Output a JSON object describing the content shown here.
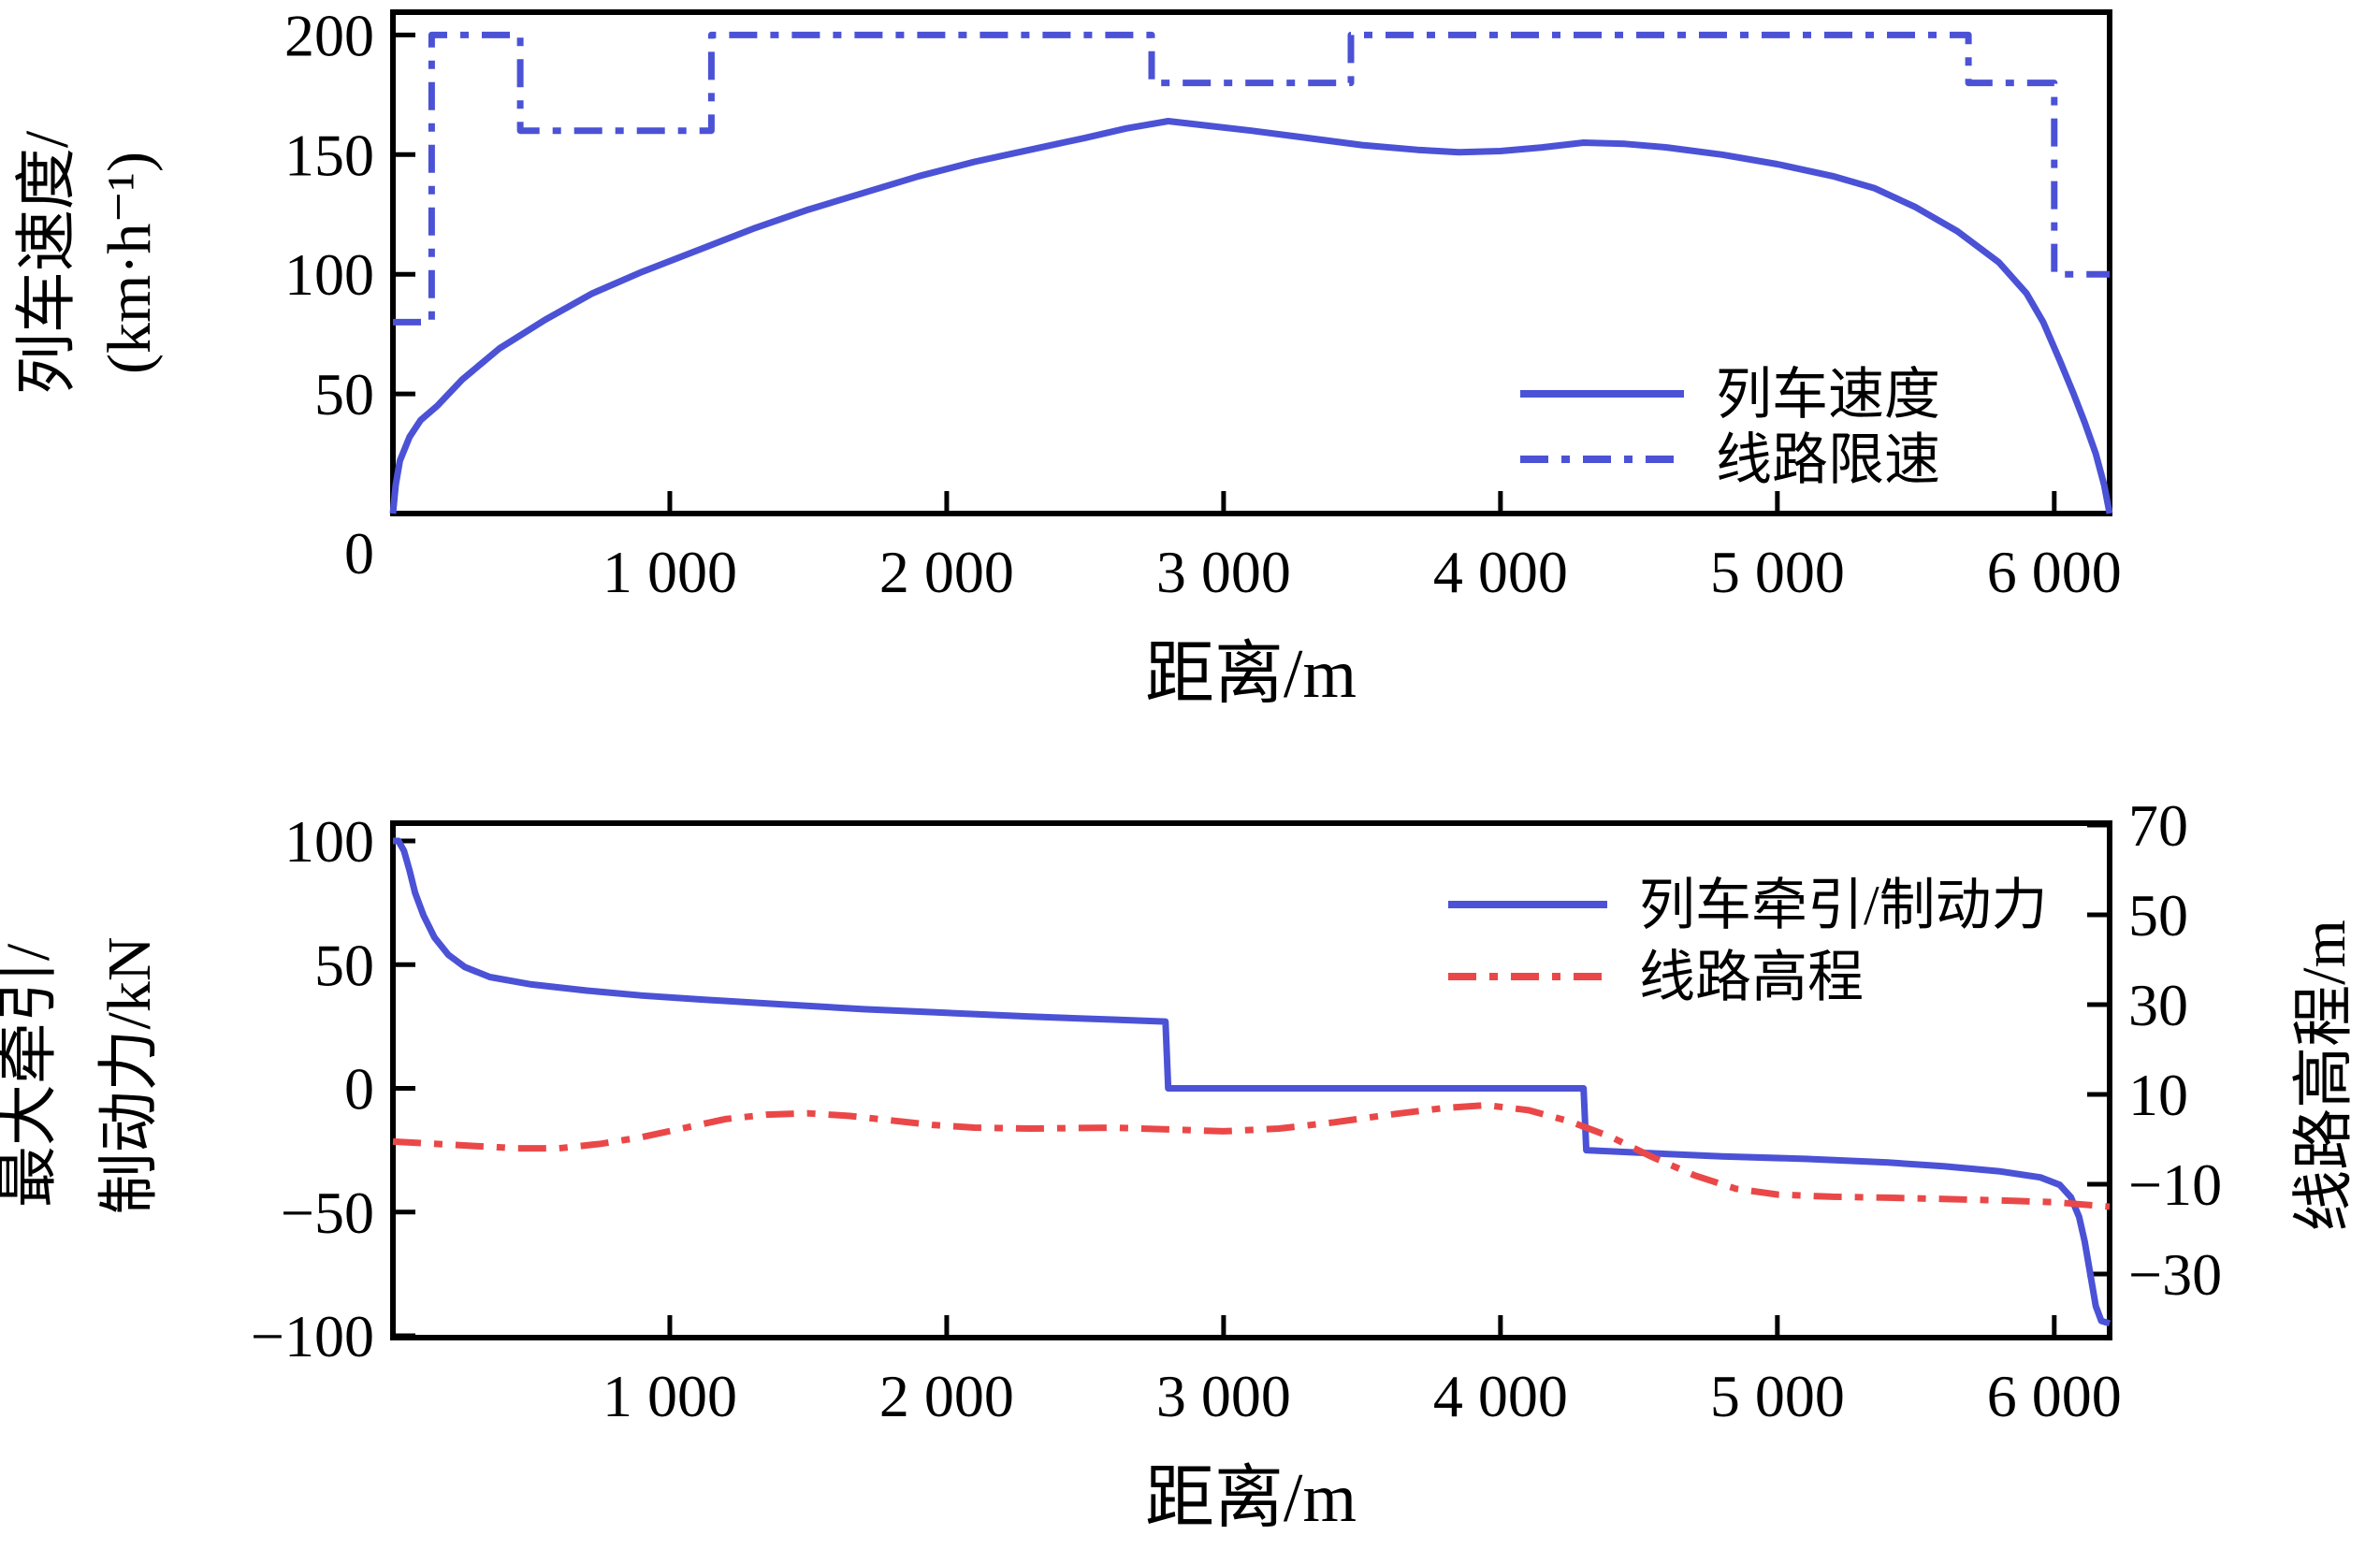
{
  "figure": {
    "background": "#ffffff",
    "colors": {
      "curve_blue": "#4b52d6",
      "elevation_red": "#ea4848",
      "axis_black": "#000000"
    }
  },
  "chart_data": [
    {
      "id": "speed_chart",
      "type": "line",
      "title": "",
      "xlabel": "距离/m",
      "ylabel_lines": [
        "列车速度/",
        "(km·h⁻¹)"
      ],
      "xlim": [
        0,
        6200
      ],
      "ylim": [
        0,
        209
      ],
      "grid": false,
      "legend_position": "center-right",
      "origin_label": "0",
      "x_ticks": [
        {
          "v": 1000,
          "label": "1 000"
        },
        {
          "v": 2000,
          "label": "2 000"
        },
        {
          "v": 3000,
          "label": "3 000"
        },
        {
          "v": 4000,
          "label": "4 000"
        },
        {
          "v": 5000,
          "label": "5 000"
        },
        {
          "v": 6000,
          "label": "6 000"
        }
      ],
      "y_ticks_left": [
        {
          "v": 200,
          "label": "200"
        },
        {
          "v": 150,
          "label": "150"
        },
        {
          "v": 100,
          "label": "100"
        },
        {
          "v": 50,
          "label": "50"
        }
      ],
      "legend": [
        {
          "label": "列车速度",
          "color": "curve_blue",
          "style": "solid"
        },
        {
          "label": "线路限速",
          "color": "curve_blue",
          "style": "dashdot"
        }
      ],
      "series": [
        {
          "name": "列车速度",
          "axis": "left",
          "style": "solid",
          "color": "curve_blue",
          "points": [
            [
              0,
              0
            ],
            [
              10,
              12
            ],
            [
              25,
              22
            ],
            [
              60,
              32
            ],
            [
              100,
              39
            ],
            [
              160,
              45
            ],
            [
              250,
              56
            ],
            [
              385,
              69
            ],
            [
              550,
              81
            ],
            [
              720,
              92
            ],
            [
              900,
              101
            ],
            [
              1100,
              110
            ],
            [
              1300,
              119
            ],
            [
              1500,
              127
            ],
            [
              1700,
              134
            ],
            [
              1900,
              141
            ],
            [
              2100,
              147
            ],
            [
              2300,
              152
            ],
            [
              2500,
              157
            ],
            [
              2650,
              161
            ],
            [
              2800,
              164
            ],
            [
              2950,
              162
            ],
            [
              3100,
              160
            ],
            [
              3300,
              157
            ],
            [
              3500,
              154
            ],
            [
              3700,
              152
            ],
            [
              3850,
              151
            ],
            [
              4000,
              151.5
            ],
            [
              4150,
              153
            ],
            [
              4300,
              155
            ],
            [
              4450,
              154.5
            ],
            [
              4600,
              153
            ],
            [
              4800,
              150
            ],
            [
              5000,
              146
            ],
            [
              5200,
              141
            ],
            [
              5350,
              136
            ],
            [
              5500,
              128
            ],
            [
              5650,
              118
            ],
            [
              5800,
              105
            ],
            [
              5900,
              92
            ],
            [
              5960,
              80
            ],
            [
              6020,
              64
            ],
            [
              6070,
              50
            ],
            [
              6110,
              38
            ],
            [
              6150,
              25
            ],
            [
              6180,
              12
            ],
            [
              6200,
              0
            ]
          ]
        },
        {
          "name": "线路限速",
          "axis": "left",
          "style": "dashdot",
          "color": "curve_blue",
          "points": [
            [
              0,
              80
            ],
            [
              140,
              80
            ],
            [
              140,
              200
            ],
            [
              460,
              200
            ],
            [
              460,
              160
            ],
            [
              1150,
              160
            ],
            [
              1150,
              200
            ],
            [
              2740,
              200
            ],
            [
              2740,
              180
            ],
            [
              3460,
              180
            ],
            [
              3460,
              200
            ],
            [
              5690,
              200
            ],
            [
              5690,
              180
            ],
            [
              6000,
              180
            ],
            [
              6000,
              100
            ],
            [
              6200,
              100
            ]
          ]
        }
      ]
    },
    {
      "id": "force_elevation_chart",
      "type": "line",
      "title": "",
      "xlabel": "距离/m",
      "ylabel_lines": [
        "最大牵引/",
        "制动力/kN"
      ],
      "ylabel_right": "线路高程/m",
      "xlim": [
        0,
        6200
      ],
      "ylim_left": [
        -101,
        107
      ],
      "ylim_right": [
        -44,
        70
      ],
      "grid": false,
      "legend_position": "center-right",
      "x_ticks": [
        {
          "v": 1000,
          "label": "1 000"
        },
        {
          "v": 2000,
          "label": "2 000"
        },
        {
          "v": 3000,
          "label": "3 000"
        },
        {
          "v": 4000,
          "label": "4 000"
        },
        {
          "v": 5000,
          "label": "5 000"
        },
        {
          "v": 6000,
          "label": "6 000"
        }
      ],
      "y_ticks_left": [
        {
          "v": 100,
          "label": "100"
        },
        {
          "v": 50,
          "label": "50"
        },
        {
          "v": 0,
          "label": "0"
        },
        {
          "v": -50,
          "label": "−50"
        },
        {
          "v": -100,
          "label": "−100"
        }
      ],
      "y_ticks_right": [
        {
          "v": 70,
          "label": "70"
        },
        {
          "v": 50,
          "label": "50"
        },
        {
          "v": 30,
          "label": "30"
        },
        {
          "v": 10,
          "label": "10"
        },
        {
          "v": -10,
          "label": "−10"
        },
        {
          "v": -30,
          "label": "−30"
        }
      ],
      "legend": [
        {
          "label": "列车牵引/制动力",
          "color": "curve_blue",
          "style": "solid"
        },
        {
          "label": "线路高程",
          "color": "elevation_red",
          "style": "dashdot"
        }
      ],
      "series": [
        {
          "name": "列车牵引/制动力",
          "axis": "left",
          "style": "solid",
          "color": "curve_blue",
          "points": [
            [
              0,
              100
            ],
            [
              20,
              100
            ],
            [
              40,
              96
            ],
            [
              60,
              88
            ],
            [
              80,
              79
            ],
            [
              110,
              70
            ],
            [
              150,
              61
            ],
            [
              200,
              54
            ],
            [
              260,
              49
            ],
            [
              350,
              45
            ],
            [
              500,
              42
            ],
            [
              700,
              39.5
            ],
            [
              900,
              37.5
            ],
            [
              1100,
              36
            ],
            [
              1400,
              34
            ],
            [
              1700,
              32
            ],
            [
              2000,
              30.5
            ],
            [
              2300,
              29
            ],
            [
              2600,
              27.8
            ],
            [
              2790,
              27
            ],
            [
              2800,
              0
            ],
            [
              4300,
              0
            ],
            [
              4310,
              -25
            ],
            [
              4500,
              -26
            ],
            [
              4800,
              -27.5
            ],
            [
              5100,
              -28.5
            ],
            [
              5400,
              -30
            ],
            [
              5600,
              -31.5
            ],
            [
              5800,
              -33.5
            ],
            [
              5950,
              -36
            ],
            [
              6020,
              -39
            ],
            [
              6060,
              -44
            ],
            [
              6090,
              -52
            ],
            [
              6110,
              -62
            ],
            [
              6130,
              -75
            ],
            [
              6150,
              -88
            ],
            [
              6170,
              -94
            ],
            [
              6200,
              -95
            ]
          ]
        },
        {
          "name": "线路高程",
          "axis": "right",
          "style": "dashdot",
          "color": "elevation_red",
          "points": [
            [
              0,
              -0.5
            ],
            [
              150,
              -1
            ],
            [
              300,
              -1.5
            ],
            [
              450,
              -2
            ],
            [
              600,
              -2
            ],
            [
              750,
              -1
            ],
            [
              900,
              0.5
            ],
            [
              1050,
              2.5
            ],
            [
              1200,
              4.5
            ],
            [
              1350,
              5.5
            ],
            [
              1500,
              5.8
            ],
            [
              1650,
              5.2
            ],
            [
              1800,
              4.2
            ],
            [
              1950,
              3.2
            ],
            [
              2100,
              2.6
            ],
            [
              2300,
              2.4
            ],
            [
              2600,
              2.6
            ],
            [
              2800,
              2.2
            ],
            [
              3000,
              1.8
            ],
            [
              3200,
              2.4
            ],
            [
              3400,
              3.8
            ],
            [
              3600,
              5.5
            ],
            [
              3800,
              7
            ],
            [
              3950,
              7.6
            ],
            [
              4100,
              6.5
            ],
            [
              4250,
              4
            ],
            [
              4400,
              0.5
            ],
            [
              4550,
              -4
            ],
            [
              4700,
              -8
            ],
            [
              4850,
              -11
            ],
            [
              5000,
              -12.3
            ],
            [
              5200,
              -12.8
            ],
            [
              5400,
              -13
            ],
            [
              5600,
              -13.3
            ],
            [
              5800,
              -13.6
            ],
            [
              6000,
              -14
            ],
            [
              6200,
              -15
            ]
          ]
        }
      ]
    }
  ]
}
